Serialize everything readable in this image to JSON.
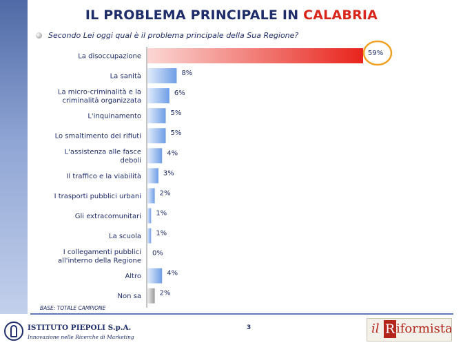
{
  "header": {
    "title_main": "IL PROBLEMA PRINCIPALE IN ",
    "title_highlight": "CALABRIA",
    "question": "Secondo Lei oggi qual è il problema principale della Sua Regione?"
  },
  "chart_data": {
    "type": "bar",
    "orientation": "horizontal",
    "categories": [
      [
        "La disoccupazione"
      ],
      [
        "La sanità"
      ],
      [
        "La micro-criminalità e la",
        "criminalità organizzata"
      ],
      [
        "L'inquinamento"
      ],
      [
        "Lo smaltimento dei rifiuti"
      ],
      [
        "L'assistenza alle fasce",
        "deboli"
      ],
      [
        "Il traffico e la viabilità"
      ],
      [
        "I trasporti pubblici urbani"
      ],
      [
        "Gli extracomunitari"
      ],
      [
        "La scuola"
      ],
      [
        "I collegamenti pubblici",
        "all'interno della Regione"
      ],
      [
        "Altro"
      ],
      [
        "Non sa"
      ]
    ],
    "values": [
      59,
      8,
      6,
      5,
      5,
      4,
      3,
      2,
      1,
      1,
      0,
      4,
      2
    ],
    "value_labels": [
      "59%",
      "8%",
      "6%",
      "5%",
      "5%",
      "4%",
      "3%",
      "2%",
      "1%",
      "1%",
      "0%",
      "4%",
      "2%"
    ],
    "highlight_index": 0,
    "colors": {
      "highlight": "#e8241c",
      "normal": "#6e9ee6",
      "neutral": "#9a9a9a",
      "circle": "#f0a020"
    },
    "grid": false
  },
  "footer": {
    "base_note": "BASE: TOTALE CAMPIONE",
    "page_number": "3",
    "left_logo_name": "ISTITUTO PIEPOLI S.p.A.",
    "left_logo_tagline": "Innovazione nelle Ricerche di Marketing",
    "right_logo_il": "il",
    "right_logo_r": "R",
    "right_logo_rest": "iformista"
  }
}
